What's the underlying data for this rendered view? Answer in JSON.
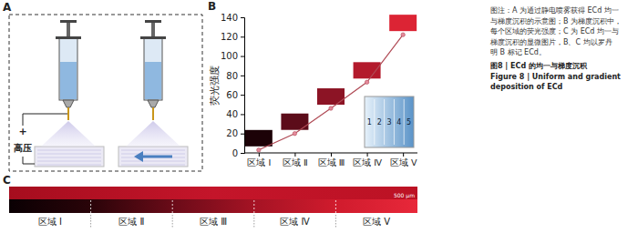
{
  "panel_a": {
    "letter": "A",
    "voltage_sign": "+",
    "voltage_label": "高压"
  },
  "panel_b": {
    "letter": "B",
    "inset_labels": [
      "1",
      "2",
      "3",
      "4",
      "5"
    ]
  },
  "chart_data": {
    "type": "line",
    "categories": [
      "区域 Ⅰ",
      "区域 Ⅱ",
      "区域 Ⅲ",
      "区域 Ⅳ",
      "区域 Ⅴ"
    ],
    "values": [
      3,
      20,
      46,
      73,
      122
    ],
    "color": "#b04a55",
    "marker": "circle",
    "ylabel": "荧光强度",
    "ylim": [
      0,
      140
    ],
    "yticks": [
      0,
      20,
      40,
      60,
      80,
      100,
      120,
      140
    ],
    "grid": false
  },
  "panel_c": {
    "letter": "C",
    "scale_bar": "500 μm",
    "regions": [
      "区域 Ⅰ",
      "区域 Ⅱ",
      "区域 Ⅲ",
      "区域 Ⅳ",
      "区域 Ⅴ"
    ]
  },
  "caption": {
    "lines": [
      "图注：A 为通过静电喷雾获得 ECd 均一",
      "与梯度沉积的示意图；B 为梯度沉积中，",
      "每个区域的荧光强度；C 为 ECd 均一与",
      "梯度沉积的显微图片，B、C 均以罗丹",
      "明 B 标记 ECd。"
    ],
    "title_zh": "图8 | ECd 的均一与梯度沉积",
    "title_en": [
      "Figure 8 | Uniform and gradient",
      "deposition of ECd"
    ]
  }
}
